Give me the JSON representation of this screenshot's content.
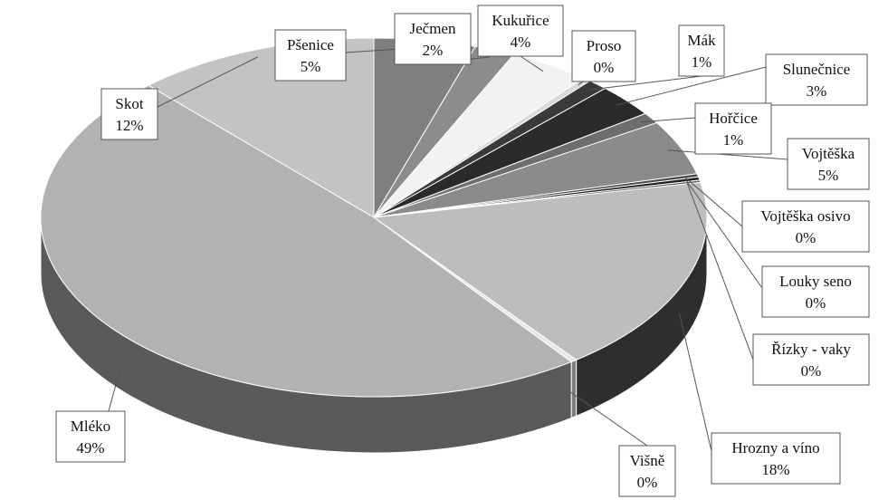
{
  "chart_data": {
    "type": "pie",
    "style": "3d",
    "title": "",
    "legend": "none",
    "slices": [
      {
        "label": "Pšenice",
        "value_label": "5%",
        "value": 5,
        "color": "#7f7f7f"
      },
      {
        "label": "Ječmen",
        "value_label": "2%",
        "value": 2,
        "color": "#8c8c8c"
      },
      {
        "label": "Kukuřice",
        "value_label": "4%",
        "value": 4,
        "color": "#f2f2f2"
      },
      {
        "label": "Proso",
        "value_label": "0%",
        "value": 0.4,
        "color": "#d9d9d9"
      },
      {
        "label": "Mák",
        "value_label": "1%",
        "value": 1,
        "color": "#3a3a3a"
      },
      {
        "label": "Slunečnice",
        "value_label": "3%",
        "value": 3,
        "color": "#2b2b2b"
      },
      {
        "label": "Hořčice",
        "value_label": "1%",
        "value": 1,
        "color": "#6e6e6e"
      },
      {
        "label": "Vojtěška",
        "value_label": "5%",
        "value": 5,
        "color": "#8a8a8a"
      },
      {
        "label": "Vojtěška osivo",
        "value_label": "0%",
        "value": 0.3,
        "color": "#4a4a4a"
      },
      {
        "label": "Louky seno",
        "value_label": "0%",
        "value": 0.3,
        "color": "#1f1f1f"
      },
      {
        "label": "Řízky - vaky",
        "value_label": "0%",
        "value": 0.2,
        "color": "#5a5a5a"
      },
      {
        "label": "Hrozny a víno",
        "value_label": "18%",
        "value": 18,
        "color": "#bdbdbd"
      },
      {
        "label": "Višně",
        "value_label": "0%",
        "value": 0.3,
        "color": "#e6e6e6"
      },
      {
        "label": "Mléko",
        "value_label": "49%",
        "value": 49,
        "color": "#b2b2b2"
      },
      {
        "label": "Skot",
        "value_label": "12%",
        "value": 12,
        "color": "#c3c3c3"
      }
    ]
  }
}
